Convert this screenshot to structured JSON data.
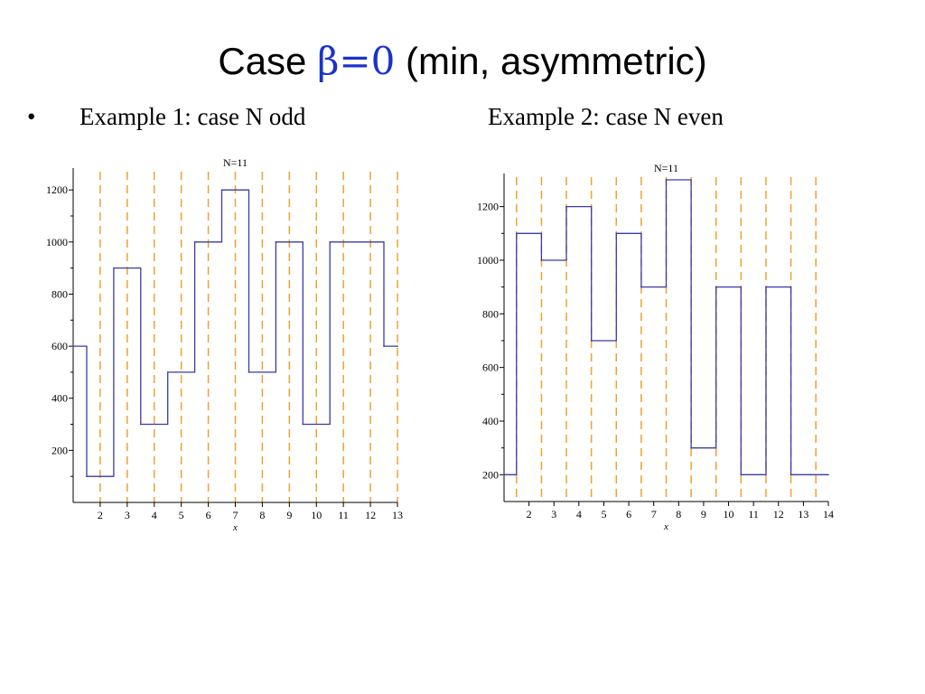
{
  "slide": {
    "title_prefix": "Case",
    "title_beta": "β=0",
    "title_suffix": "(min, asymmetric)",
    "bullet": "•",
    "example1": "Example 1: case N odd",
    "example2": "Example 2: case N even"
  },
  "colors": {
    "step_line": "#3a3aa8",
    "dashed_line": "#f0a030",
    "axis": "#000000",
    "title_accent": "#1a33cc"
  },
  "chart_data": [
    {
      "type": "line",
      "title": "N=11",
      "xlabel": "x",
      "ylabel": "",
      "xlim": [
        1,
        13
      ],
      "ylim": [
        0,
        1270
      ],
      "xticks": [
        2,
        3,
        4,
        5,
        6,
        7,
        8,
        9,
        10,
        11,
        12,
        13
      ],
      "yticks": [
        200,
        400,
        600,
        800,
        1000,
        1200
      ],
      "minor_yticks": [
        100,
        300,
        500,
        700,
        900,
        1100
      ],
      "dashed_x": [
        2,
        3,
        4,
        5,
        6,
        7,
        8,
        9,
        10,
        11,
        12,
        13
      ],
      "series": [
        {
          "x": [
            1,
            1.5,
            2.5,
            3.5,
            4.5,
            5.5,
            6.5,
            7.5,
            8.5,
            9.5,
            10.5,
            12.5,
            13
          ],
          "y": [
            600,
            100,
            900,
            300,
            500,
            1000,
            1200,
            500,
            1000,
            300,
            1000,
            600,
            600
          ]
        }
      ]
    },
    {
      "type": "line",
      "title": "N=11",
      "xlabel": "x",
      "ylabel": "",
      "xlim": [
        1,
        14
      ],
      "ylim": [
        100,
        1310
      ],
      "xticks": [
        2,
        3,
        4,
        5,
        6,
        7,
        8,
        9,
        10,
        11,
        12,
        13,
        14
      ],
      "yticks": [
        200,
        400,
        600,
        800,
        1000,
        1200
      ],
      "minor_yticks": [
        300,
        500,
        700,
        900,
        1100
      ],
      "dashed_x": [
        1.5,
        2.5,
        3.5,
        4.5,
        5.5,
        6.5,
        7.5,
        8.5,
        9.5,
        10.5,
        11.5,
        12.5,
        13.5
      ],
      "series": [
        {
          "x": [
            1,
            1.5,
            2.5,
            3.5,
            4.5,
            5.5,
            6.5,
            7.5,
            8.5,
            9.5,
            10.5,
            11.5,
            12.5,
            14
          ],
          "y": [
            200,
            1100,
            1000,
            1200,
            700,
            1100,
            900,
            1300,
            300,
            900,
            200,
            900,
            200,
            200
          ]
        }
      ]
    }
  ]
}
